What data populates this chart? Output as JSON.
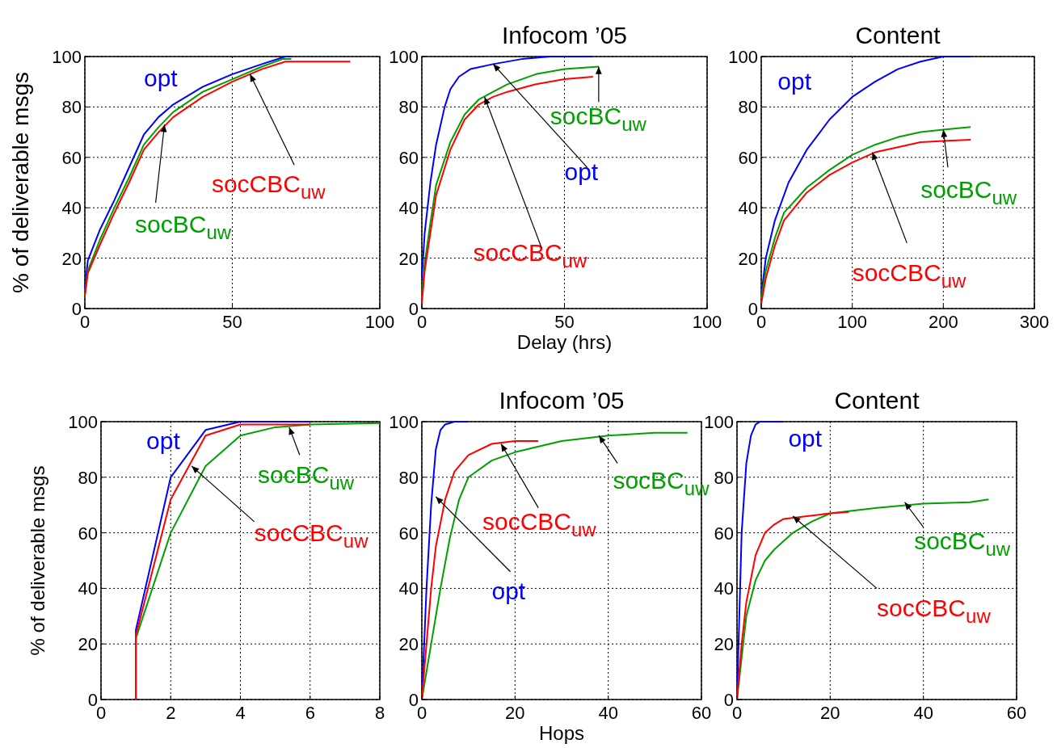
{
  "chart_data": [
    {
      "type": "line",
      "ylabel": "% of deliverable msgs",
      "xlim": [
        0,
        100
      ],
      "xticks": [
        0,
        50,
        100
      ],
      "ylim": [
        0,
        100
      ],
      "yticks": [
        0,
        20,
        40,
        60,
        80,
        100
      ],
      "grid": true,
      "line_style": "solid",
      "series": [
        {
          "name": "opt",
          "color": "#0000ff",
          "x": [
            0,
            1,
            5,
            10,
            15,
            20,
            25,
            30,
            40,
            50,
            60,
            68,
            70
          ],
          "values": [
            8,
            19,
            31,
            43,
            56,
            69,
            76,
            81,
            88,
            93,
            97,
            100,
            100
          ]
        },
        {
          "name": "socBC$_{uw}$",
          "color": "#00a000",
          "x": [
            0,
            1,
            5,
            10,
            15,
            20,
            25,
            30,
            40,
            50,
            60,
            67,
            70
          ],
          "values": [
            5,
            15,
            27,
            40,
            52,
            65,
            72,
            78,
            86,
            91,
            96,
            99,
            99
          ]
        },
        {
          "name": "socCBC$_{uw}$",
          "color": "#ff0000",
          "x": [
            0,
            1,
            5,
            10,
            15,
            20,
            25,
            30,
            40,
            50,
            60,
            68,
            90
          ],
          "values": [
            5,
            14,
            25,
            38,
            50,
            63,
            70,
            76,
            84,
            90,
            95,
            98,
            98
          ]
        }
      ]
    },
    {
      "type": "line",
      "title": "Infocom ’05",
      "xlabel": "Delay (hrs)",
      "xlim": [
        0,
        100
      ],
      "xticks": [
        0,
        50,
        100
      ],
      "ylim": [
        0,
        100
      ],
      "yticks": [
        0,
        20,
        40,
        60,
        80,
        100
      ],
      "grid": true,
      "line_style": "solid",
      "series": [
        {
          "name": "opt",
          "color": "#0000ff",
          "x": [
            0,
            1,
            3,
            5,
            8,
            10,
            13,
            17,
            25,
            35,
            45,
            60
          ],
          "values": [
            12,
            30,
            50,
            65,
            80,
            87,
            92,
            95,
            97,
            99,
            100,
            100
          ]
        },
        {
          "name": "socBC$_{uw}$",
          "color": "#00a000",
          "x": [
            0,
            1,
            3,
            5,
            10,
            15,
            20,
            25,
            30,
            40,
            50,
            62
          ],
          "values": [
            4,
            18,
            34,
            49,
            66,
            77,
            83,
            86,
            89,
            93,
            95,
            96
          ]
        },
        {
          "name": "socCBC$_{uw}$",
          "color": "#ff0000",
          "x": [
            0,
            1,
            3,
            5,
            10,
            15,
            20,
            25,
            30,
            40,
            50,
            60
          ],
          "values": [
            2,
            15,
            30,
            45,
            63,
            75,
            81,
            84,
            86,
            89,
            91,
            92
          ]
        }
      ]
    },
    {
      "type": "line",
      "title": "Content",
      "xlim": [
        0,
        300
      ],
      "xticks": [
        0,
        100,
        200,
        300
      ],
      "ylim": [
        0,
        100
      ],
      "yticks": [
        0,
        20,
        40,
        60,
        80,
        100
      ],
      "grid": true,
      "line_style": "solid",
      "series": [
        {
          "name": "opt",
          "color": "#0000ff",
          "x": [
            0,
            5,
            15,
            30,
            50,
            75,
            100,
            125,
            150,
            175,
            200,
            230
          ],
          "values": [
            5,
            20,
            35,
            50,
            63,
            75,
            84,
            90,
            95,
            98,
            100,
            100
          ]
        },
        {
          "name": "socBC$_{uw}$",
          "color": "#00a000",
          "x": [
            0,
            5,
            15,
            25,
            50,
            75,
            100,
            125,
            150,
            175,
            200,
            230
          ],
          "values": [
            4,
            15,
            28,
            38,
            48,
            55,
            61,
            65,
            68,
            70,
            71,
            72
          ]
        },
        {
          "name": "socCBC$_{uw}$",
          "color": "#ff0000",
          "x": [
            0,
            5,
            15,
            25,
            50,
            75,
            100,
            125,
            150,
            175,
            200,
            230
          ],
          "values": [
            2,
            12,
            25,
            35,
            46,
            53,
            58,
            62,
            64,
            66,
            66.5,
            67
          ]
        }
      ]
    },
    {
      "type": "line",
      "ylabel": "% of deliverable msgs",
      "xlim": [
        0,
        8
      ],
      "xticks": [
        0,
        2,
        4,
        6,
        8
      ],
      "ylim": [
        0,
        100
      ],
      "yticks": [
        0,
        20,
        40,
        60,
        80,
        100
      ],
      "grid": true,
      "line_style": "solid",
      "series": [
        {
          "name": "opt",
          "color": "#0000ff",
          "x": [
            1,
            1,
            2,
            3,
            4,
            6
          ],
          "values": [
            0,
            25,
            80,
            97,
            100,
            100
          ]
        },
        {
          "name": "socBC$_{uw}$",
          "color": "#00a000",
          "x": [
            1,
            1,
            2,
            3,
            4,
            5,
            6,
            8
          ],
          "values": [
            0,
            22,
            60,
            84,
            95,
            98,
            99,
            99.5
          ]
        },
        {
          "name": "socCBC$_{uw}$",
          "color": "#ff0000",
          "x": [
            1,
            1,
            2,
            3,
            4,
            6
          ],
          "values": [
            0,
            23,
            72,
            95,
            99,
            99
          ]
        }
      ]
    },
    {
      "type": "line",
      "title": "Infocom ’05",
      "xlabel": "Hops",
      "xlim": [
        0,
        60
      ],
      "xticks": [
        0,
        20,
        40,
        60
      ],
      "ylim": [
        0,
        100
      ],
      "yticks": [
        0,
        20,
        40,
        60,
        80,
        100
      ],
      "grid": true,
      "line_style": "solid",
      "series": [
        {
          "name": "opt",
          "color": "#0000ff",
          "x": [
            0,
            1,
            2,
            3,
            4,
            5,
            7,
            10
          ],
          "values": [
            0,
            40,
            70,
            90,
            97,
            99,
            100,
            100
          ]
        },
        {
          "name": "socBC$_{uw}$",
          "color": "#00a000",
          "x": [
            0,
            2,
            4,
            6,
            8,
            10,
            15,
            20,
            30,
            40,
            50,
            57
          ],
          "values": [
            0,
            20,
            40,
            58,
            72,
            80,
            86,
            89,
            93,
            95,
            96,
            96
          ]
        },
        {
          "name": "socCBC$_{uw}$",
          "color": "#ff0000",
          "x": [
            0,
            1,
            2,
            3,
            5,
            7,
            10,
            15,
            20,
            25
          ],
          "values": [
            0,
            20,
            40,
            55,
            72,
            82,
            88,
            92,
            93,
            93
          ]
        }
      ]
    },
    {
      "type": "line",
      "title": "Content",
      "xlim": [
        0,
        60
      ],
      "xticks": [
        0,
        20,
        40,
        60
      ],
      "ylim": [
        0,
        100
      ],
      "yticks": [
        0,
        20,
        40,
        60,
        80,
        100
      ],
      "grid": true,
      "line_style": "solid",
      "series": [
        {
          "name": "opt",
          "color": "#0000ff",
          "x": [
            0,
            0.5,
            1,
            2,
            3,
            4,
            5,
            10
          ],
          "values": [
            0,
            30,
            60,
            85,
            95,
            99,
            100,
            100
          ]
        },
        {
          "name": "socBC$_{uw}$",
          "color": "#00a000",
          "x": [
            0,
            1,
            2,
            4,
            6,
            8,
            12,
            16,
            20,
            30,
            40,
            50,
            54
          ],
          "values": [
            0,
            15,
            30,
            43,
            50,
            54,
            60,
            64,
            67,
            69,
            70.5,
            71,
            72
          ]
        },
        {
          "name": "socCBC$_{uw}$",
          "color": "#ff0000",
          "x": [
            0,
            1,
            2,
            4,
            6,
            8,
            10,
            15,
            20,
            24
          ],
          "values": [
            0,
            20,
            35,
            52,
            60,
            63,
            65,
            66,
            67,
            67.5
          ]
        }
      ]
    }
  ]
}
